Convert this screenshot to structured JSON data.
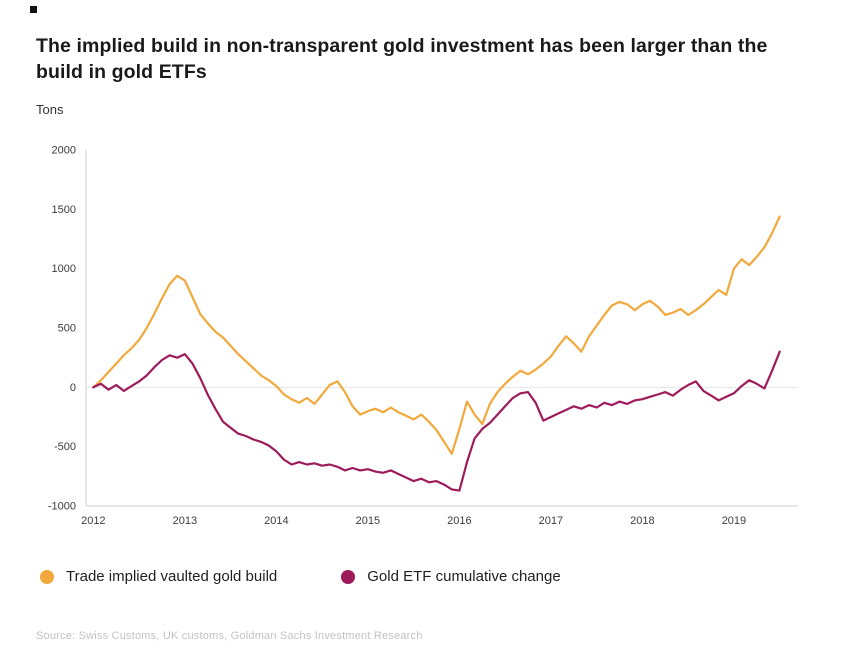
{
  "page": {
    "title": "The implied build in non-transparent gold investment has been larger than the build in gold ETFs",
    "units_label": "Tons",
    "source": "Source: Swiss Customs, UK customs, Goldman Sachs Investment Research"
  },
  "chart_data": {
    "type": "line",
    "title": "The implied build in non-transparent gold investment has been larger than the build in gold ETFs",
    "xlabel": "",
    "ylabel": "Tons",
    "ylim": [
      -1000,
      2000
    ],
    "yticks": [
      2000,
      1500,
      1000,
      500,
      0,
      -500,
      -1000
    ],
    "xlim": [
      2011.92,
      2019.7
    ],
    "xticks": [
      2012,
      2013,
      2014,
      2015,
      2016,
      2017,
      2018,
      2019
    ],
    "x_start_year": 2012,
    "x_step_months": 1,
    "grid": "zero-line-only",
    "legend_position": "bottom",
    "axis_color": "#cfcfcf",
    "zero_line_color": "#e4e4e4",
    "tick_text_color": "#3d3d3d",
    "series": [
      {
        "name": "Trade implied vaulted gold build",
        "color": "#F2A93B",
        "values": [
          0,
          60,
          130,
          200,
          270,
          330,
          400,
          500,
          620,
          750,
          870,
          940,
          900,
          760,
          620,
          540,
          470,
          420,
          350,
          280,
          220,
          160,
          100,
          60,
          10,
          -60,
          -100,
          -130,
          -90,
          -140,
          -60,
          20,
          50,
          -40,
          -160,
          -230,
          -200,
          -180,
          -210,
          -170,
          -210,
          -240,
          -270,
          -230,
          -290,
          -360,
          -460,
          -560,
          -350,
          -120,
          -230,
          -310,
          -140,
          -40,
          30,
          90,
          140,
          110,
          150,
          200,
          260,
          350,
          430,
          370,
          300,
          430,
          520,
          610,
          690,
          720,
          700,
          650,
          700,
          730,
          680,
          610,
          630,
          660,
          610,
          650,
          700,
          760,
          820,
          780,
          1000,
          1080,
          1030,
          1100,
          1180,
          1300,
          1440
        ]
      },
      {
        "name": "Gold ETF cumulative change",
        "color": "#9E1B5B",
        "values": [
          0,
          30,
          -20,
          20,
          -30,
          10,
          50,
          100,
          170,
          230,
          270,
          250,
          280,
          200,
          80,
          -60,
          -180,
          -290,
          -340,
          -390,
          -410,
          -440,
          -460,
          -490,
          -540,
          -610,
          -650,
          -630,
          -650,
          -640,
          -660,
          -650,
          -670,
          -700,
          -680,
          -700,
          -690,
          -710,
          -720,
          -700,
          -730,
          -760,
          -790,
          -770,
          -800,
          -790,
          -820,
          -860,
          -870,
          -630,
          -430,
          -350,
          -300,
          -230,
          -160,
          -90,
          -50,
          -40,
          -130,
          -280,
          -250,
          -220,
          -190,
          -160,
          -180,
          -150,
          -170,
          -130,
          -150,
          -120,
          -140,
          -110,
          -100,
          -80,
          -60,
          -40,
          -70,
          -20,
          20,
          50,
          -30,
          -70,
          -110,
          -80,
          -50,
          10,
          60,
          30,
          -10,
          140,
          300
        ]
      }
    ]
  }
}
